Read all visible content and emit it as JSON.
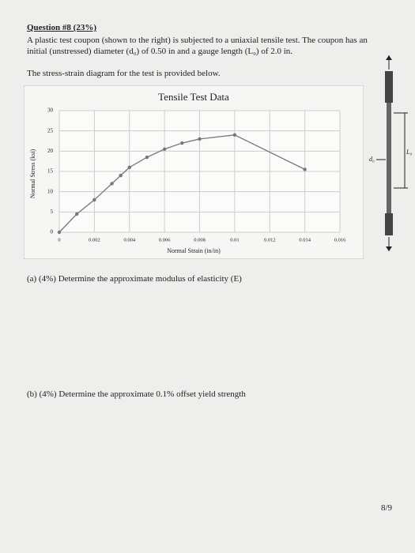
{
  "question": {
    "heading": "Question #8 (23%)",
    "intro": "A plastic test coupon (shown to the right) is subjected to a uniaxial tensile test. The coupon has an initial (unstressed) diameter (d₀) of 0.50 in and a gauge length (L₀) of 2.0 in.",
    "diagram_note": "The stress-strain diagram for the test is provided below.",
    "part_a": "(a) (4%) Determine the approximate modulus of elasticity (E)",
    "part_b": "(b) (4%) Determine the approximate 0.1% offset yield strength",
    "page_number": "8/9"
  },
  "figure": {
    "diameter_label": "d₀",
    "length_label": "L₀"
  },
  "chart_data": {
    "type": "line",
    "title": "Tensile Test Data",
    "x_label": "Normal Strain (in/in)",
    "y_label": "Normal Stress (ksi)",
    "x": [
      0,
      0.001,
      0.002,
      0.003,
      0.0035,
      0.004,
      0.005,
      0.006,
      0.007,
      0.008,
      0.01,
      0.014
    ],
    "values": [
      0,
      4.5,
      8,
      12,
      14,
      16,
      18.5,
      20.5,
      22,
      23,
      24,
      15.5
    ],
    "color": "#777777",
    "xlim": [
      0,
      0.016
    ],
    "xticks": [
      0,
      0.002,
      0.004,
      0.006,
      0.008,
      0.01,
      0.012,
      0.014,
      0.016
    ],
    "ylim": [
      0,
      30
    ],
    "yticks": [
      0,
      5,
      10,
      15,
      20,
      25,
      30
    ],
    "grid": true
  }
}
